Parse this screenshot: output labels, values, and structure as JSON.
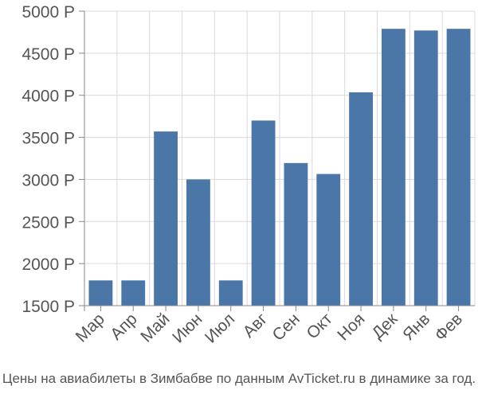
{
  "chart_data": {
    "type": "bar",
    "categories": [
      "Мар",
      "Апр",
      "Май",
      "Июн",
      "Июл",
      "Авг",
      "Сен",
      "Окт",
      "Ноя",
      "Дек",
      "Янв",
      "Фев"
    ],
    "values": [
      1800,
      1800,
      3570,
      3000,
      1800,
      3700,
      3195,
      3065,
      4035,
      4790,
      4770,
      4790
    ],
    "ylim": [
      1500,
      5000
    ],
    "yticks": [
      1500,
      2000,
      2500,
      3000,
      3500,
      4000,
      4500,
      5000
    ],
    "ytick_labels": [
      "1500 Р",
      "2000 Р",
      "2500 Р",
      "3000 Р",
      "3500 Р",
      "4000 Р",
      "4500 Р",
      "5000 Р"
    ],
    "grid": true,
    "caption": "Цены на авиабилеты в Зимбабве по данным AvTicket.ru в динамике за год.",
    "bar_color": "#4a76a8",
    "grid_color": "#d9d9d9",
    "axis_color": "#888888",
    "text_color": "#555555"
  }
}
